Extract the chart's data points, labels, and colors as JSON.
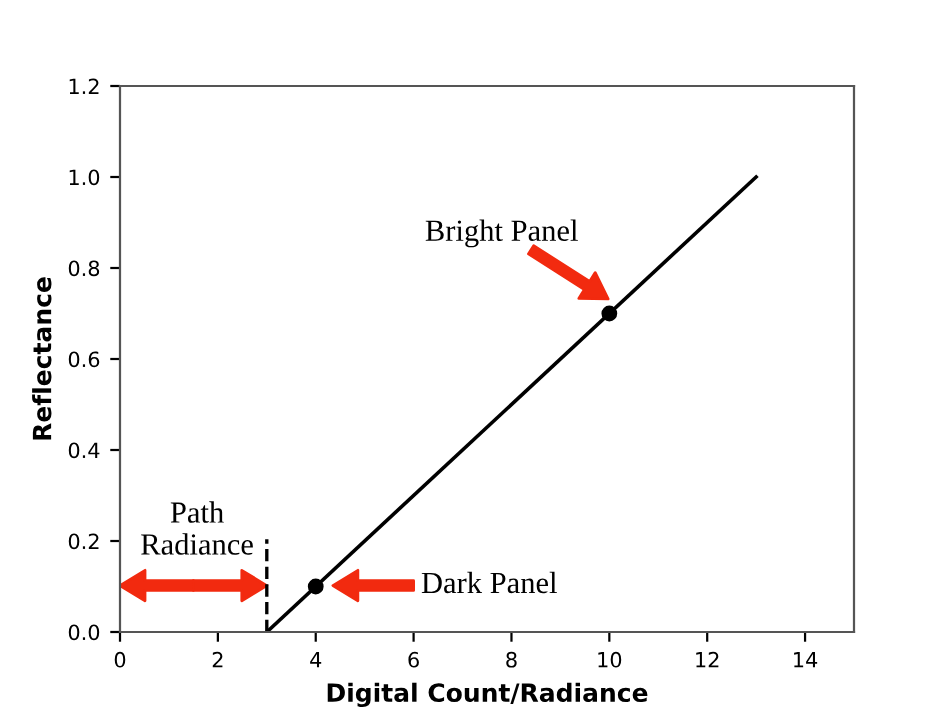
{
  "chart_data": {
    "type": "line",
    "xlabel": "Digital Count/Radiance",
    "ylabel": "Reflectance",
    "xlim": [
      0,
      15
    ],
    "ylim": [
      0,
      1.2
    ],
    "xticks": [
      0,
      2,
      4,
      6,
      8,
      10,
      12,
      14
    ],
    "yticks": [
      {
        "value": 0,
        "label": "0.0"
      },
      0.2,
      0.4,
      0.6,
      0.8,
      {
        "value": 1,
        "label": "1.0"
      },
      1.2
    ],
    "series": [
      {
        "color": "#000000",
        "x": [
          3,
          13
        ],
        "values": [
          0,
          1.0
        ],
        "marker": "none"
      },
      {
        "type": "scatter",
        "color": "#000000",
        "x": [
          4,
          10
        ],
        "values": [
          0.1,
          0.7
        ],
        "marker": "circle"
      }
    ],
    "ref_lines": [
      {
        "axis": "x",
        "value": 3,
        "color": "#000000",
        "line_style": "dashed"
      }
    ],
    "annotations": [
      "Bright Panel",
      "Dark Panel",
      "Path\nRadiance"
    ],
    "grid": false
  }
}
